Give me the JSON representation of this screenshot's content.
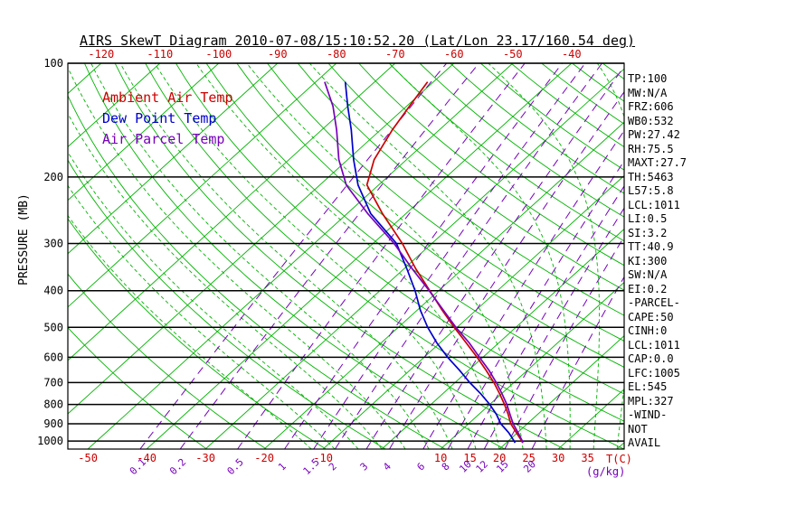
{
  "title": "AIRS SkewT Diagram 2010-07-08/15:10:52.20 (Lat/Lon 23.17/160.54 deg)",
  "legend": {
    "items": [
      {
        "label": "Ambient Air Temp",
        "color": "#cc0000"
      },
      {
        "label": "Dew Point Temp",
        "color": "#0000cc"
      },
      {
        "label": "Air Parcel Temp",
        "color": "#7700bb"
      }
    ]
  },
  "stats": {
    "lines": [
      "TP:100",
      "MW:N/A",
      "FRZ:606",
      "WB0:532",
      "PW:27.42",
      "RH:75.5",
      "MAXT:27.7",
      "TH:5463",
      "L57:5.8",
      "LCL:1011",
      "LI:0.5",
      "SI:3.2",
      "TT:40.9",
      "KI:300",
      "SW:N/A",
      "EI:0.2",
      "-PARCEL-",
      "CAPE:50",
      "CINH:0",
      "LCL:1011",
      "CAP:0.0",
      "LFC:1005",
      "EL:545",
      "MPL:327",
      "-WIND-",
      "NOT",
      "AVAIL"
    ]
  },
  "colors": {
    "green": "#00b400",
    "purple": "#7700bb",
    "red": "#cc0000",
    "black": "#000000",
    "ambient": "#cc0000",
    "dewpoint": "#0000cc",
    "parcel": "#7700bb"
  },
  "axes": {
    "pressure_axis_label": "PRESSURE (MB)",
    "temperature_unit_label": "T(C)",
    "mixing_ratio_unit_label": "(g/kg)"
  },
  "chart_data": {
    "type": "line",
    "variant": "skewt-log-p",
    "title": "AIRS SkewT Diagram 2010-07-08/15:10:52.20 (Lat/Lon 23.17/160.54 deg)",
    "x_axis_label": "T(C)",
    "y_axis_label": "PRESSURE (MB)",
    "y_scale": "log",
    "pressure_range_mb": [
      100,
      1050
    ],
    "pressure_ticks_mb": [
      100,
      200,
      300,
      400,
      500,
      600,
      700,
      800,
      900,
      1000
    ],
    "top_temperature_ticks_c": [
      -120,
      -110,
      -100,
      -90,
      -80,
      -70,
      -60,
      -50,
      -40
    ],
    "bottom_temperature_ticks_c": [
      -50,
      -40,
      -30,
      -20,
      -10,
      10,
      15,
      20,
      25,
      30,
      35
    ],
    "mixing_ratio_lines_g_per_kg": [
      0.1,
      0.2,
      0.5,
      1,
      1.5,
      2,
      3,
      4,
      6,
      8,
      10,
      12,
      15,
      20
    ],
    "isotherms_c": {
      "min": -130,
      "max": 50,
      "step": 10
    },
    "dry_adiabats_theta_k": {
      "min": 240,
      "max": 460,
      "step": 10
    },
    "moist_adiabats_start_c": {
      "min": -12,
      "max": 40,
      "step": 4
    },
    "series": [
      {
        "name": "Ambient Air Temp",
        "color": "#cc0000",
        "points": [
          [
            1011,
            22.8
          ],
          [
            1000,
            22.3
          ],
          [
            950,
            19.8
          ],
          [
            900,
            17.2
          ],
          [
            850,
            15.0
          ],
          [
            800,
            12.5
          ],
          [
            750,
            9.7
          ],
          [
            700,
            6.6
          ],
          [
            650,
            3.0
          ],
          [
            600,
            -1.0
          ],
          [
            550,
            -5.5
          ],
          [
            500,
            -10.5
          ],
          [
            450,
            -15.8
          ],
          [
            400,
            -21.5
          ],
          [
            350,
            -28.0
          ],
          [
            300,
            -35.0
          ],
          [
            250,
            -44.0
          ],
          [
            210,
            -52.0
          ],
          [
            180,
            -55.5
          ],
          [
            150,
            -58.0
          ],
          [
            130,
            -59.5
          ],
          [
            112,
            -61.0
          ]
        ]
      },
      {
        "name": "Dew Point Temp",
        "color": "#0000cc",
        "points": [
          [
            1011,
            21.5
          ],
          [
            1000,
            21.0
          ],
          [
            950,
            18.5
          ],
          [
            900,
            15.5
          ],
          [
            850,
            13.0
          ],
          [
            800,
            10.0
          ],
          [
            750,
            6.5
          ],
          [
            700,
            2.5
          ],
          [
            650,
            -1.5
          ],
          [
            600,
            -6.0
          ],
          [
            550,
            -10.5
          ],
          [
            500,
            -15.0
          ],
          [
            450,
            -19.5
          ],
          [
            400,
            -24.0
          ],
          [
            350,
            -29.5
          ],
          [
            300,
            -36.0
          ],
          [
            250,
            -46.0
          ],
          [
            210,
            -53.5
          ],
          [
            180,
            -59.0
          ],
          [
            150,
            -65.0
          ],
          [
            130,
            -70.0
          ],
          [
            112,
            -75.0
          ]
        ]
      },
      {
        "name": "Air Parcel Temp",
        "color": "#7700bb",
        "points": [
          [
            1011,
            22.8
          ],
          [
            1000,
            22.4
          ],
          [
            950,
            20.1
          ],
          [
            900,
            17.6
          ],
          [
            850,
            15.3
          ],
          [
            800,
            12.9
          ],
          [
            750,
            10.1
          ],
          [
            700,
            7.0
          ],
          [
            650,
            3.5
          ],
          [
            600,
            -0.6
          ],
          [
            550,
            -5.0
          ],
          [
            500,
            -10.2
          ],
          [
            450,
            -15.6
          ],
          [
            400,
            -21.6
          ],
          [
            350,
            -28.6
          ],
          [
            300,
            -36.4
          ],
          [
            250,
            -46.5
          ],
          [
            210,
            -55.5
          ],
          [
            180,
            -61.5
          ],
          [
            150,
            -67.5
          ],
          [
            130,
            -72.5
          ],
          [
            112,
            -78.5
          ]
        ]
      }
    ]
  }
}
